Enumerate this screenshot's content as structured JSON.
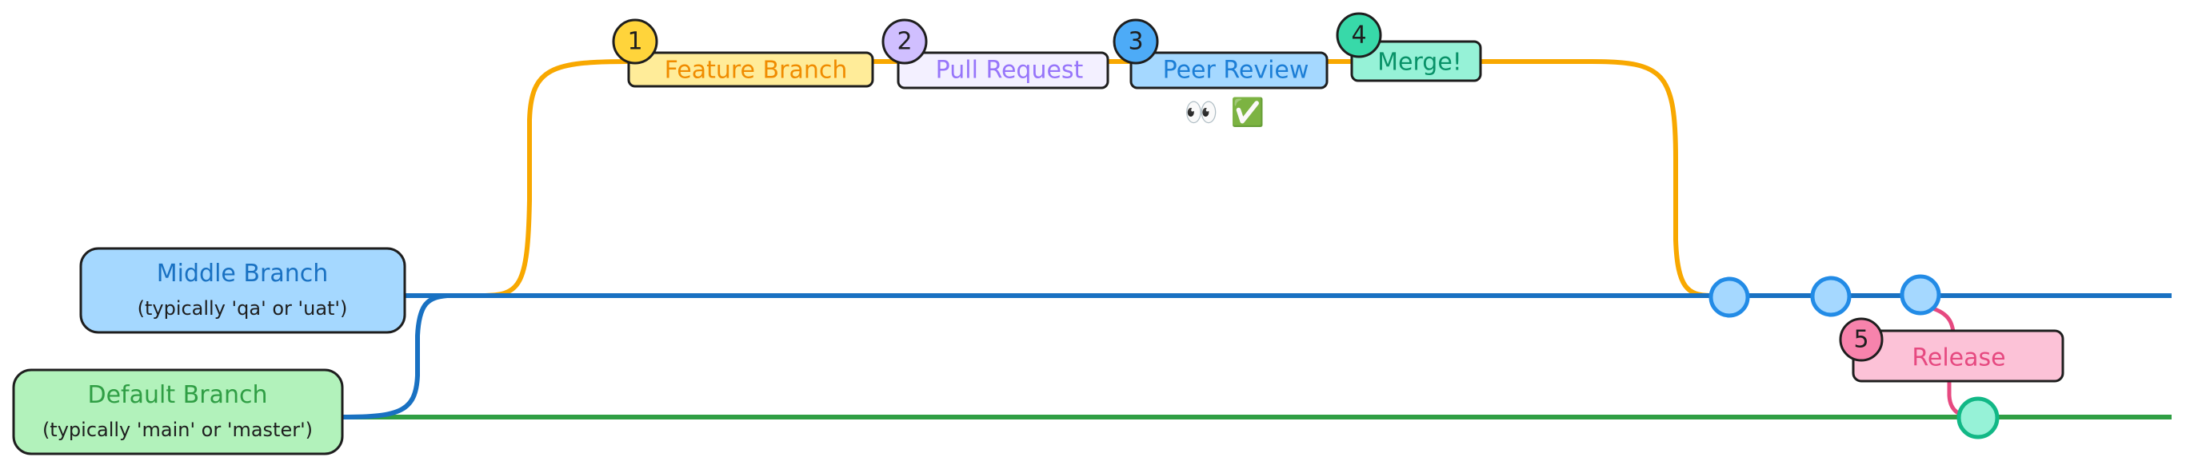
{
  "colors": {
    "middle_line": "#1971c2",
    "default_line": "#2f9e44",
    "feature_line": "#f8a800",
    "release_line": "#e64980",
    "commit_blue_fill": "#a5d8ff",
    "commit_blue_stroke": "#228be6",
    "commit_green_fill": "#96f2d7",
    "commit_green_stroke": "#12b886"
  },
  "branches": {
    "middle": {
      "title": "Middle Branch",
      "subtitle": "(typically 'qa' or 'uat')"
    },
    "default": {
      "title": "Default Branch",
      "subtitle": "(typically 'main' or 'master')"
    }
  },
  "steps": [
    {
      "number": "1",
      "label": "Feature Branch",
      "text_color": "#f08c00",
      "fill": "#ffec99",
      "badge_fill": "#ffd43b"
    },
    {
      "number": "2",
      "label": "Pull Request",
      "text_color": "#9775fa",
      "fill": "#f3f0ff",
      "badge_fill": "#d0bfff"
    },
    {
      "number": "3",
      "label": "Peer Review",
      "text_color": "#1c7ed6",
      "fill": "#a5d8ff",
      "badge_fill": "#4dabf7"
    },
    {
      "number": "4",
      "label": "Merge!",
      "text_color": "#099268",
      "fill": "#96f2d7",
      "badge_fill": "#38d9a9"
    },
    {
      "number": "5",
      "label": "Release",
      "text_color": "#e64980",
      "fill": "#fcc2d7",
      "badge_fill": "#f783ac"
    }
  ],
  "review_emojis": {
    "eyes": "👀",
    "check": "✅"
  }
}
